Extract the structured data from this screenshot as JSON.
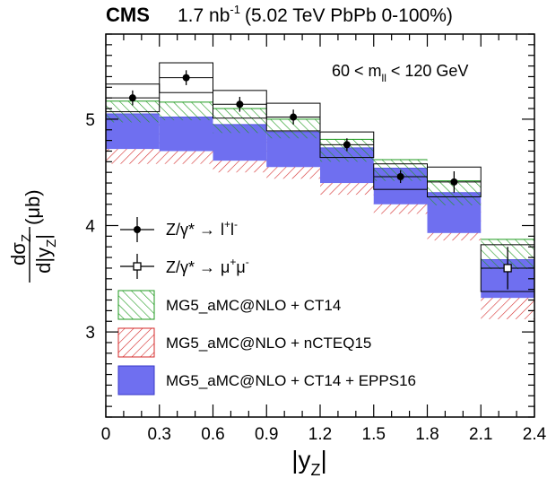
{
  "header": {
    "experiment": "CMS",
    "lumi_value": "1.7 nb",
    "lumi_exp": "-1",
    "lumi_rest": "(5.02 TeV PbPb 0-100%)"
  },
  "annotation": {
    "prefix": "60 < m",
    "sub": "ll",
    "suffix": "< 120 GeV"
  },
  "legend": {
    "ll": {
      "lhs": "Z/γ* →",
      "base": "l",
      "sup1": "+",
      "base2": "l",
      "sup2": "-"
    },
    "mumu": {
      "lhs": "Z/γ* →",
      "base": "μ",
      "sup1": "+",
      "base2": "μ",
      "sup2": "-"
    },
    "ct14": "MG5_aMC@NLO + CT14",
    "ncteq": "MG5_aMC@NLO + nCTEQ15",
    "epps": "MG5_aMC@NLO + CT14 + EPPS16"
  },
  "chart_data": {
    "type": "bar",
    "xlabel": "|y_Z|",
    "ylabel": "dσ_Z/d|y_Z| (μb)",
    "xlim": [
      0,
      2.4
    ],
    "ylim": [
      2.2,
      5.8
    ],
    "x_ticks": [
      "0",
      "0.3",
      "0.6",
      "0.9",
      "1.2",
      "1.5",
      "1.8",
      "2.1",
      "2.4"
    ],
    "y_ticks": [
      "3",
      "4",
      "5"
    ],
    "y_tick_values": [
      3,
      4,
      5
    ],
    "bin_edges": [
      0,
      0.3,
      0.6,
      0.9,
      1.2,
      1.5,
      1.8,
      2.1,
      2.4
    ],
    "series": [
      {
        "name": "Z/γ* → l+l-",
        "x": [
          0.15,
          0.45,
          0.75,
          1.05,
          1.35,
          1.65,
          1.95
        ],
        "y": [
          5.2,
          5.39,
          5.14,
          5.02,
          4.76,
          4.46,
          4.41
        ],
        "stat_err": [
          0.07,
          0.07,
          0.07,
          0.07,
          0.06,
          0.06,
          0.1
        ],
        "syst_err": [
          0.13,
          0.14,
          0.13,
          0.13,
          0.12,
          0.12,
          0.14
        ]
      },
      {
        "name": "Z/γ* → μ+μ-",
        "x": [
          2.25
        ],
        "y": [
          3.6
        ],
        "stat_err": [
          0.2
        ],
        "syst_err": [
          0.22
        ]
      },
      {
        "name": "MG5_aMC@NLO + CT14",
        "low": [
          4.97,
          4.99,
          4.87,
          4.82,
          4.6,
          4.42,
          4.19,
          3.59
        ],
        "high": [
          5.17,
          5.16,
          5.1,
          5.0,
          4.81,
          4.62,
          4.42,
          3.87
        ]
      },
      {
        "name": "MG5_aMC@NLO + nCTEQ15",
        "low": [
          4.58,
          4.58,
          4.5,
          4.44,
          4.29,
          4.11,
          3.86,
          3.12
        ],
        "high": [
          4.95,
          4.95,
          4.87,
          4.81,
          4.64,
          4.44,
          4.21,
          3.39
        ]
      },
      {
        "name": "MG5_aMC@NLO + CT14 + EPPS16",
        "low": [
          4.72,
          4.7,
          4.61,
          4.55,
          4.4,
          4.2,
          3.93,
          3.32
        ],
        "high": [
          5.05,
          5.02,
          4.95,
          4.88,
          4.73,
          4.54,
          4.31,
          3.68
        ]
      }
    ]
  }
}
